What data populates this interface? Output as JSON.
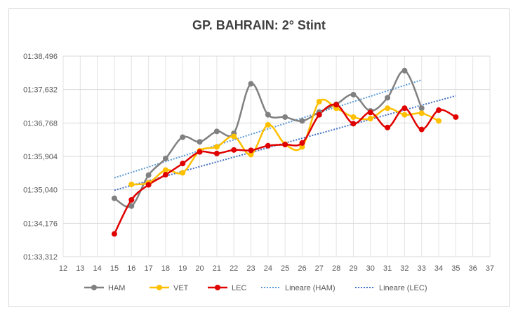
{
  "chart_data": {
    "type": "line",
    "title": "GP. BAHRAIN: 2° Stint",
    "xlabel": "",
    "ylabel": "",
    "x_ticks": [
      12,
      13,
      14,
      15,
      16,
      17,
      18,
      19,
      20,
      21,
      22,
      23,
      24,
      25,
      26,
      27,
      28,
      29,
      30,
      31,
      32,
      33,
      34,
      35,
      36,
      37
    ],
    "xlim": [
      12,
      37
    ],
    "y_ticks": [
      "01:33,312",
      "01:34,176",
      "01:35,040",
      "01:35,904",
      "01:36,768",
      "01:37,632",
      "01:38,496"
    ],
    "ylim_seconds": [
      93.312,
      98.496
    ],
    "grid": true,
    "legend_position": "bottom",
    "series": [
      {
        "name": "HAM",
        "color": "#808080",
        "smooth": true,
        "x": [
          15,
          16,
          17,
          18,
          19,
          20,
          21,
          22,
          23,
          24,
          25,
          26,
          27,
          28,
          29,
          30,
          31,
          32,
          33
        ],
        "y_seconds": [
          94.82,
          94.62,
          95.42,
          95.85,
          96.4,
          96.28,
          96.55,
          96.5,
          97.78,
          96.98,
          96.92,
          96.82,
          97.05,
          97.25,
          97.5,
          97.08,
          97.42,
          98.12,
          97.15
        ]
      },
      {
        "name": "VET",
        "color": "#ffc000",
        "smooth": true,
        "x": [
          16,
          17,
          18,
          19,
          20,
          21,
          22,
          23,
          24,
          25,
          26,
          27,
          28,
          29,
          30,
          31,
          32,
          33,
          34
        ],
        "y_seconds": [
          95.18,
          95.22,
          95.55,
          95.48,
          96.05,
          96.15,
          96.42,
          95.95,
          96.72,
          96.22,
          96.15,
          97.32,
          97.15,
          96.92,
          96.88,
          97.15,
          96.98,
          97.02,
          96.82
        ]
      },
      {
        "name": "LEC",
        "color": "#e00000",
        "smooth": true,
        "x": [
          15,
          16,
          17,
          18,
          19,
          20,
          21,
          22,
          23,
          24,
          25,
          26,
          27,
          28,
          29,
          30,
          31,
          32,
          33,
          34,
          35
        ],
        "y_seconds": [
          93.9,
          94.78,
          95.17,
          95.43,
          95.72,
          96.02,
          95.98,
          96.07,
          96.06,
          96.18,
          96.21,
          96.25,
          96.98,
          97.24,
          96.75,
          97.04,
          96.65,
          97.15,
          96.6,
          97.1,
          96.92
        ]
      },
      {
        "name": "Lineare (HAM)",
        "color": "#5b9bd5",
        "dashed": true,
        "x": [
          15,
          33
        ],
        "y_seconds": [
          95.35,
          97.88
        ]
      },
      {
        "name": "Lineare (LEC)",
        "color": "#4472c4",
        "dashed": true,
        "x": [
          15,
          35
        ],
        "y_seconds": [
          95.03,
          97.47
        ]
      }
    ]
  }
}
